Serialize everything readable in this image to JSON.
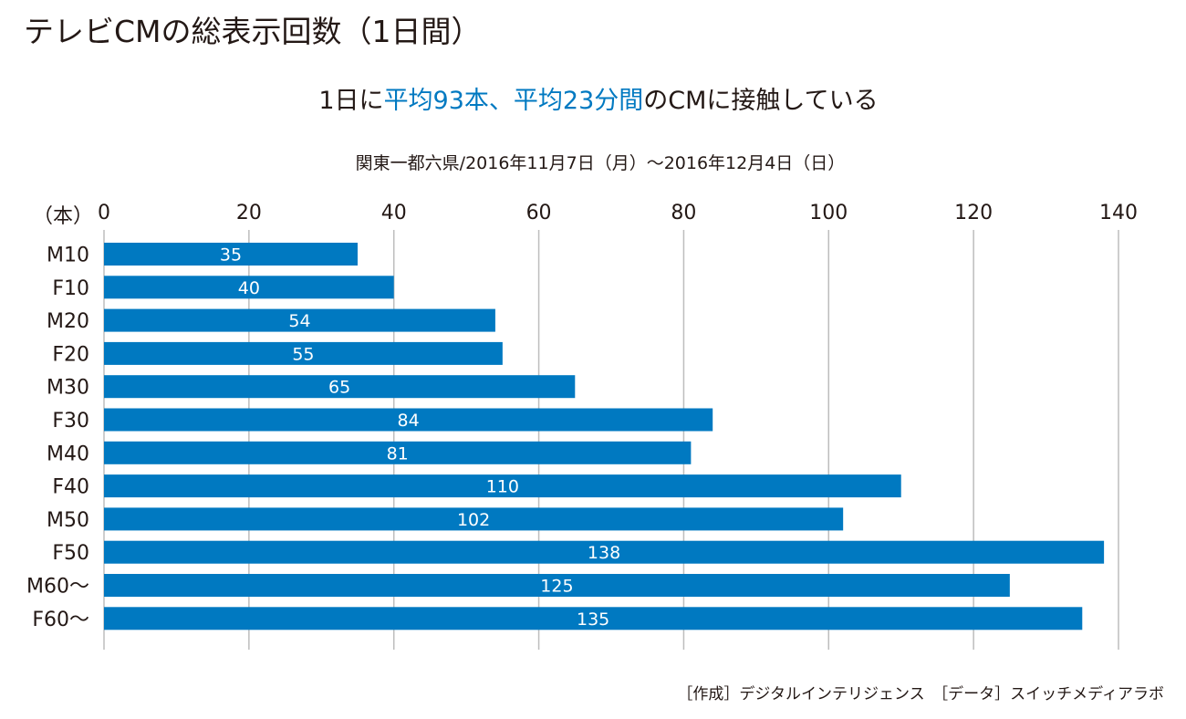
{
  "header": {
    "title": "テレビCMの総表示回数（1日間）",
    "subtitle_parts": [
      {
        "text": "1日に",
        "highlight": false
      },
      {
        "text": "平均93本、平均23分間",
        "highlight": true
      },
      {
        "text": "のCMに接触している",
        "highlight": false
      }
    ],
    "period": "関東一都六県/2016年11月7日（月）〜2016年12月4日（日）"
  },
  "footer": {
    "credit": "［作成］デジタルインテリジェンス　［データ］スイッチメディアラボ"
  },
  "colors": {
    "bar": "#0079c1",
    "highlight": "#0079c1",
    "text": "#231815",
    "grid": "#bdbdbd"
  },
  "chart_data": {
    "type": "bar",
    "orientation": "horizontal",
    "title": "テレビCMの総表示回数（1日間）",
    "subtitle": "1日に平均93本、平均23分間のCMに接触している",
    "xlabel": "（本）",
    "ylabel": "",
    "xlim": [
      0,
      140
    ],
    "xticks": [
      0,
      20,
      40,
      60,
      80,
      100,
      120,
      140
    ],
    "axis_position": "top",
    "grid": true,
    "categories": [
      "M10",
      "F10",
      "M20",
      "F20",
      "M30",
      "F30",
      "M40",
      "F40",
      "M50",
      "F50",
      "M60〜",
      "F60〜"
    ],
    "values": [
      35,
      40,
      54,
      55,
      65,
      84,
      81,
      110,
      102,
      138,
      125,
      135
    ],
    "data_labels": [
      "35",
      "40",
      "54",
      "55",
      "65",
      "84",
      "81",
      "110",
      "102",
      "138",
      "125",
      "135"
    ]
  }
}
